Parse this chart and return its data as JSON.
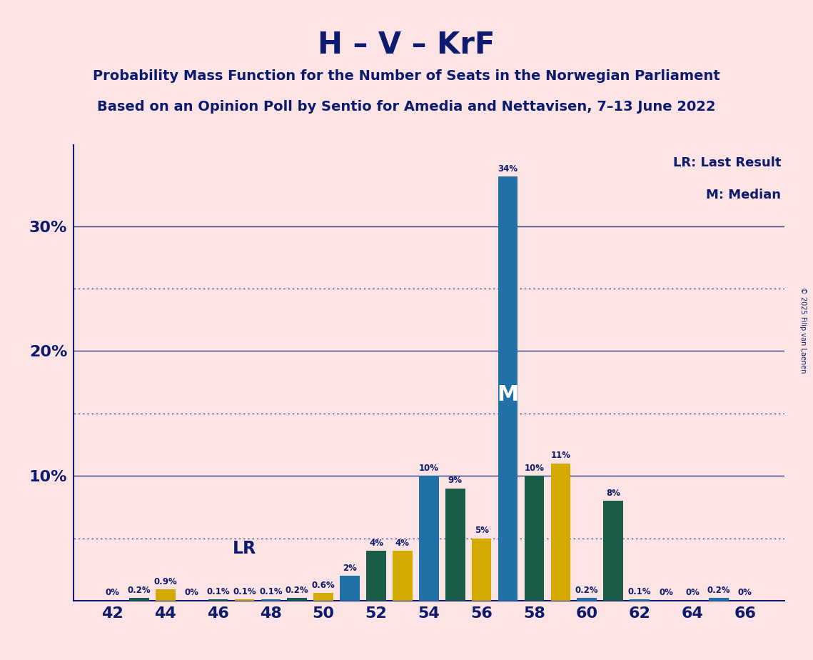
{
  "title": "H – V – KrF",
  "subtitle1": "Probability Mass Function for the Number of Seats in the Norwegian Parliament",
  "subtitle2": "Based on an Opinion Poll by Sentio for Amedia and Nettavisen, 7–13 June 2022",
  "copyright": "© 2025 Filip van Laenen",
  "legend_lr": "LR: Last Result",
  "legend_m": "M: Median",
  "background_color": "#fce4e4",
  "title_color": "#0d1b6e",
  "bar_color_blue": "#2171a8",
  "bar_color_teal": "#1a5c45",
  "bar_color_yellow": "#d4aa00",
  "bar_data": [
    {
      "seat": 42,
      "value": 0.0,
      "color_key": "blue"
    },
    {
      "seat": 43,
      "value": 0.2,
      "color_key": "teal"
    },
    {
      "seat": 44,
      "value": 0.9,
      "color_key": "yellow"
    },
    {
      "seat": 45,
      "value": 0.0,
      "color_key": "blue"
    },
    {
      "seat": 46,
      "value": 0.1,
      "color_key": "teal"
    },
    {
      "seat": 47,
      "value": 0.1,
      "color_key": "yellow"
    },
    {
      "seat": 48,
      "value": 0.1,
      "color_key": "blue"
    },
    {
      "seat": 49,
      "value": 0.2,
      "color_key": "teal"
    },
    {
      "seat": 50,
      "value": 0.6,
      "color_key": "yellow"
    },
    {
      "seat": 51,
      "value": 2.0,
      "color_key": "blue"
    },
    {
      "seat": 52,
      "value": 4.0,
      "color_key": "teal"
    },
    {
      "seat": 53,
      "value": 4.0,
      "color_key": "yellow"
    },
    {
      "seat": 54,
      "value": 10.0,
      "color_key": "blue"
    },
    {
      "seat": 55,
      "value": 9.0,
      "color_key": "teal"
    },
    {
      "seat": 56,
      "value": 5.0,
      "color_key": "yellow"
    },
    {
      "seat": 57,
      "value": 34.0,
      "color_key": "blue"
    },
    {
      "seat": 58,
      "value": 10.0,
      "color_key": "teal"
    },
    {
      "seat": 59,
      "value": 11.0,
      "color_key": "yellow"
    },
    {
      "seat": 60,
      "value": 0.2,
      "color_key": "blue"
    },
    {
      "seat": 61,
      "value": 8.0,
      "color_key": "teal"
    },
    {
      "seat": 62,
      "value": 0.1,
      "color_key": "blue"
    },
    {
      "seat": 63,
      "value": 0.0,
      "color_key": "teal"
    },
    {
      "seat": 64,
      "value": 0.0,
      "color_key": "yellow"
    },
    {
      "seat": 65,
      "value": 0.2,
      "color_key": "blue"
    },
    {
      "seat": 66,
      "value": 0.0,
      "color_key": "teal"
    }
  ],
  "lr_seat": 50,
  "median_seat": 57,
  "xlim": [
    40.5,
    67.5
  ],
  "ylim": [
    0,
    36.5
  ],
  "xticks": [
    42,
    44,
    46,
    48,
    50,
    52,
    54,
    56,
    58,
    60,
    62,
    64,
    66
  ],
  "bar_width": 0.75,
  "solid_lines": [
    10.0,
    20.0,
    30.0
  ],
  "dotted_lines": [
    5.0,
    15.0,
    25.0
  ],
  "ytick_positions": [
    10.0,
    20.0,
    30.0
  ],
  "ytick_labels": [
    "10%",
    "20%",
    "30%"
  ]
}
